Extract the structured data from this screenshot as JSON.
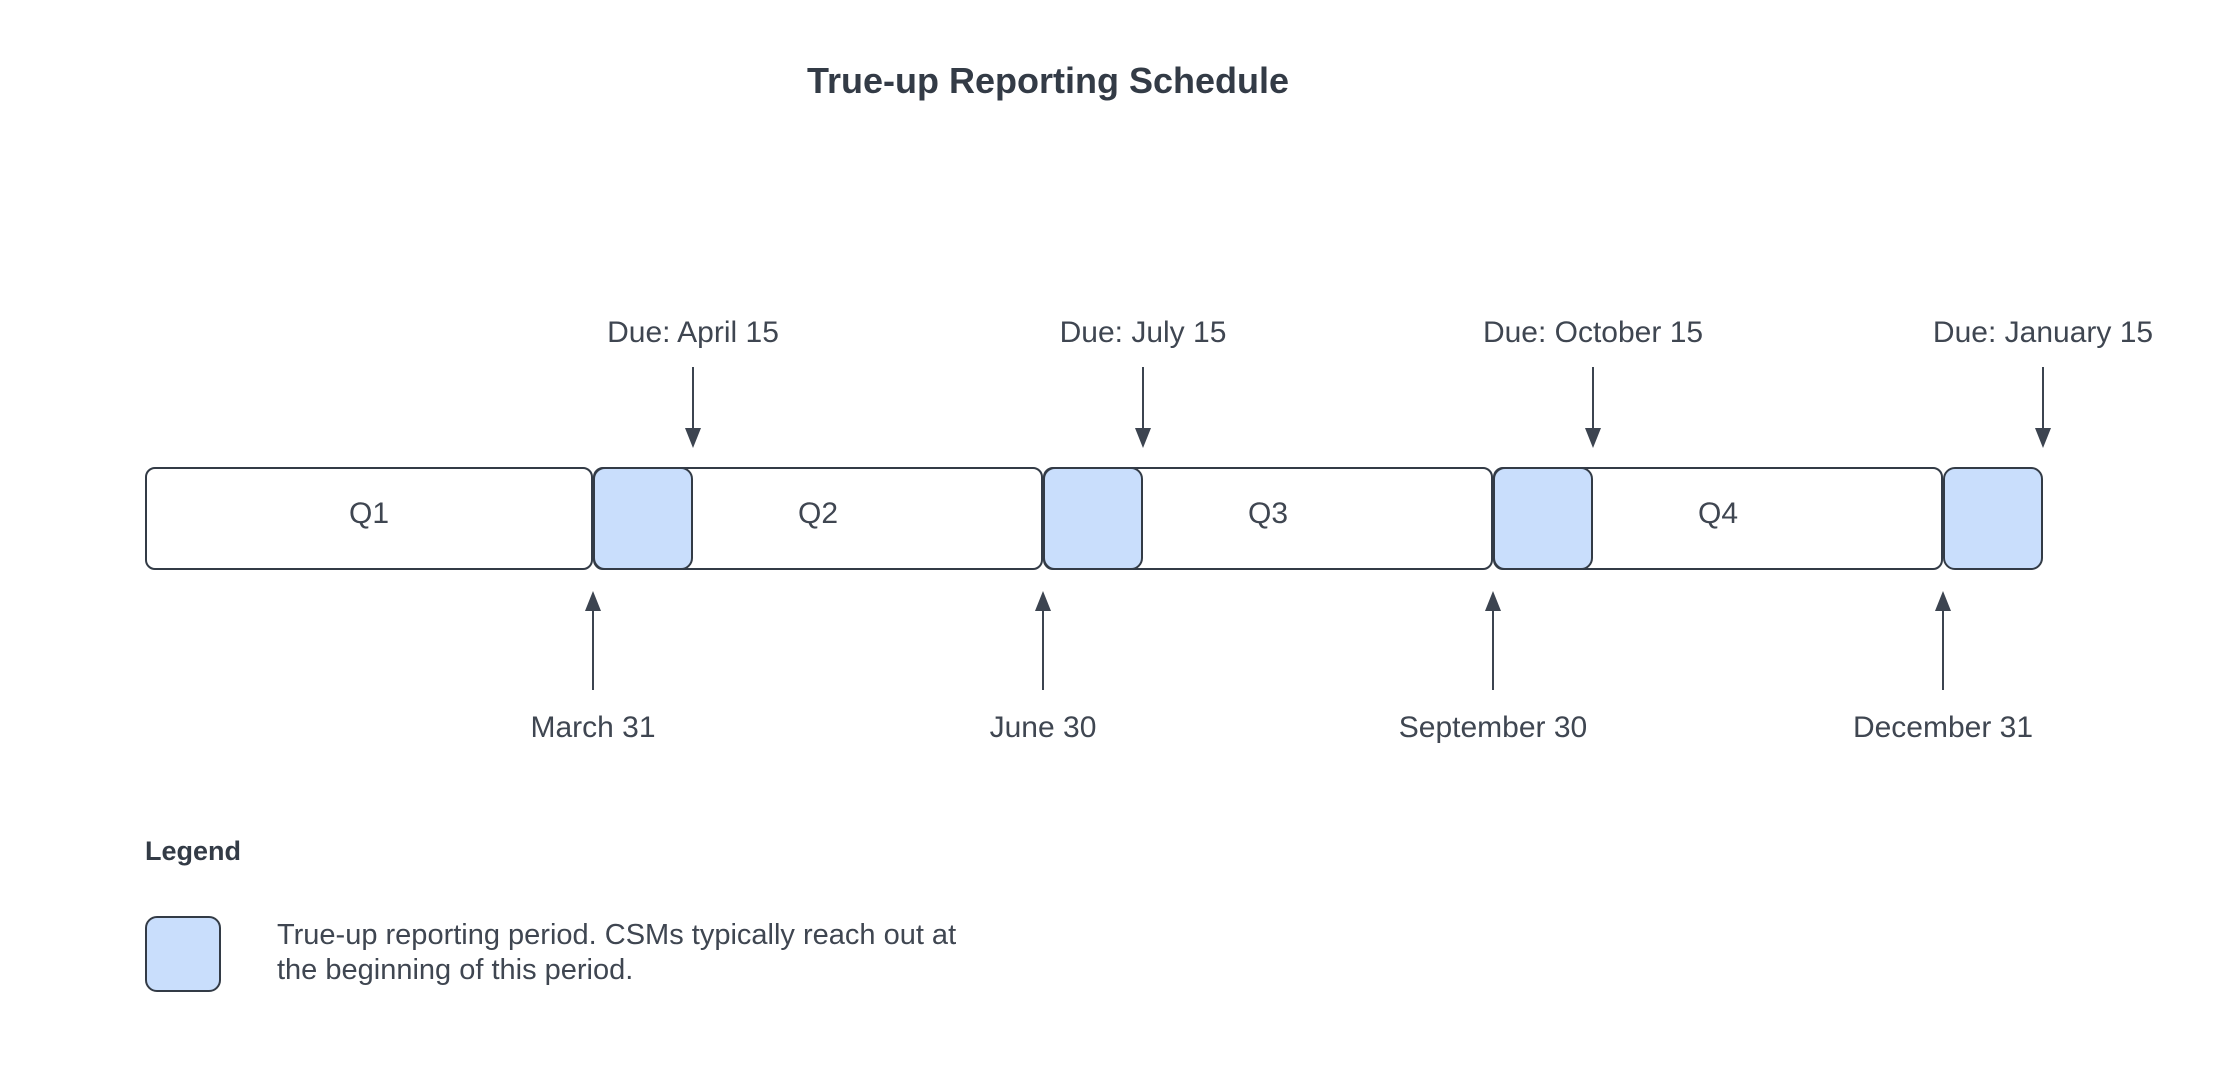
{
  "title": "True-up Reporting Schedule",
  "timeline": {
    "quarters": [
      {
        "label": "Q1"
      },
      {
        "label": "Q2"
      },
      {
        "label": "Q3"
      },
      {
        "label": "Q4"
      }
    ],
    "due_markers": [
      {
        "label": "Due: April 15"
      },
      {
        "label": "Due: July 15"
      },
      {
        "label": "Due: October 15"
      },
      {
        "label": "Due: January 15"
      }
    ],
    "quarter_end_markers": [
      {
        "label": "March 31"
      },
      {
        "label": "June 30"
      },
      {
        "label": "September 30"
      },
      {
        "label": "December 31"
      }
    ],
    "trueup_period_count": 4
  },
  "legend": {
    "title": "Legend",
    "items": [
      {
        "swatch": "trueup-period-swatch",
        "description": "True-up reporting period. CSMs typically reach out at the beginning of this period."
      }
    ]
  },
  "colors": {
    "trueup_fill": "#c9defc",
    "stroke": "#333b46",
    "text": "#3f4651",
    "background": "#ffffff"
  }
}
